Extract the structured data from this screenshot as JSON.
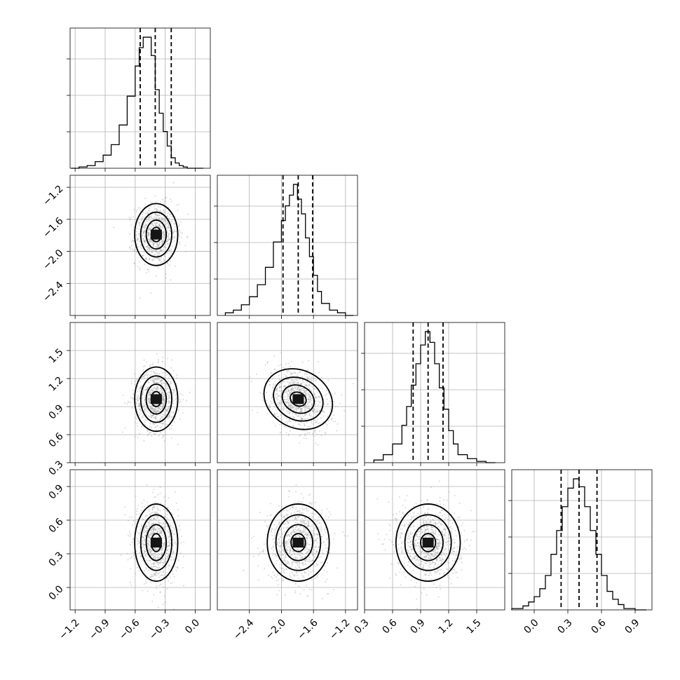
{
  "chart_data": {
    "type": "corner",
    "grid": true,
    "parameters": [
      {
        "range": [
          -1.25,
          0.15
        ],
        "ticks": [
          -1.2,
          -0.9,
          -0.6,
          -0.3,
          0.0
        ],
        "tick_labels": [
          "−1.2",
          "−0.9",
          "−0.6",
          "−0.3",
          "0.0"
        ],
        "quantiles": [
          -0.55,
          -0.4,
          -0.24
        ],
        "mean": -0.39,
        "sd": 0.1,
        "histogram": {
          "edges": [
            -1.24,
            -1.16,
            -1.08,
            -1.0,
            -0.92,
            -0.84,
            -0.76,
            -0.68,
            -0.6,
            -0.56,
            -0.52,
            -0.48,
            -0.44,
            -0.4,
            -0.36,
            -0.32,
            -0.28,
            -0.24,
            -0.2,
            -0.16,
            -0.12,
            -0.08,
            -0.04,
            0.0,
            0.04,
            0.08
          ],
          "counts": [
            0.0,
            0.01,
            0.02,
            0.05,
            0.1,
            0.18,
            0.33,
            0.55,
            0.78,
            0.92,
            1.0,
            1.0,
            0.86,
            0.6,
            0.42,
            0.28,
            0.17,
            0.08,
            0.04,
            0.02,
            0.01,
            0.0,
            0.0,
            0.0,
            0.0
          ]
        }
      },
      {
        "range": [
          -2.8,
          -1.05
        ],
        "ticks": [
          -2.4,
          -2.0,
          -1.6,
          -1.2
        ],
        "tick_labels": [
          "−2.4",
          "−2.0",
          "−1.6",
          "−1.2"
        ],
        "quantiles": [
          -1.98,
          -1.79,
          -1.61
        ],
        "mean": -1.79,
        "sd": 0.18,
        "histogram": {
          "edges": [
            -2.7,
            -2.6,
            -2.5,
            -2.4,
            -2.3,
            -2.2,
            -2.1,
            -2.0,
            -1.95,
            -1.9,
            -1.85,
            -1.8,
            -1.75,
            -1.7,
            -1.65,
            -1.6,
            -1.55,
            -1.5,
            -1.4,
            -1.3,
            -1.2,
            -1.1
          ],
          "counts": [
            0.02,
            0.04,
            0.08,
            0.14,
            0.23,
            0.36,
            0.55,
            0.71,
            0.82,
            0.9,
            0.98,
            0.87,
            0.76,
            0.58,
            0.44,
            0.3,
            0.18,
            0.09,
            0.04,
            0.02,
            0.0
          ]
        }
      },
      {
        "range": [
          0.3,
          1.8
        ],
        "ticks": [
          0.3,
          0.6,
          0.9,
          1.2,
          1.5
        ],
        "tick_labels": [
          "0.3",
          "0.6",
          "0.9",
          "1.2",
          "1.5"
        ],
        "quantiles": [
          0.82,
          0.98,
          1.14
        ],
        "mean": 0.98,
        "sd": 0.16,
        "histogram": {
          "edges": [
            0.4,
            0.5,
            0.6,
            0.7,
            0.75,
            0.8,
            0.85,
            0.9,
            0.95,
            1.0,
            1.05,
            1.1,
            1.15,
            1.2,
            1.25,
            1.3,
            1.4,
            1.5,
            1.6,
            1.7
          ],
          "counts": [
            0.02,
            0.06,
            0.14,
            0.28,
            0.42,
            0.58,
            0.74,
            0.88,
            0.98,
            0.9,
            0.74,
            0.56,
            0.4,
            0.24,
            0.14,
            0.06,
            0.03,
            0.01,
            0.0
          ]
        }
      },
      {
        "range": [
          -0.2,
          1.05
        ],
        "ticks": [
          0.0,
          0.3,
          0.6,
          0.9
        ],
        "tick_labels": [
          "0.0",
          "0.3",
          "0.6",
          "0.9"
        ],
        "quantiles": [
          0.24,
          0.4,
          0.56
        ],
        "mean": 0.4,
        "sd": 0.16,
        "histogram": {
          "edges": [
            -0.2,
            -0.1,
            -0.05,
            0.0,
            0.05,
            0.1,
            0.15,
            0.2,
            0.25,
            0.3,
            0.35,
            0.4,
            0.45,
            0.5,
            0.55,
            0.6,
            0.65,
            0.7,
            0.75,
            0.8,
            0.9,
            1.0
          ],
          "counts": [
            0.01,
            0.03,
            0.06,
            0.1,
            0.16,
            0.26,
            0.42,
            0.6,
            0.78,
            0.92,
            0.99,
            0.93,
            0.78,
            0.6,
            0.42,
            0.26,
            0.14,
            0.08,
            0.04,
            0.01,
            0.0
          ]
        }
      }
    ],
    "correlations": {
      "1-0": 0.0,
      "2-0": 0.0,
      "2-1": -0.3,
      "3-0": -0.08,
      "3-1": 0.0,
      "3-2": -0.05
    }
  }
}
